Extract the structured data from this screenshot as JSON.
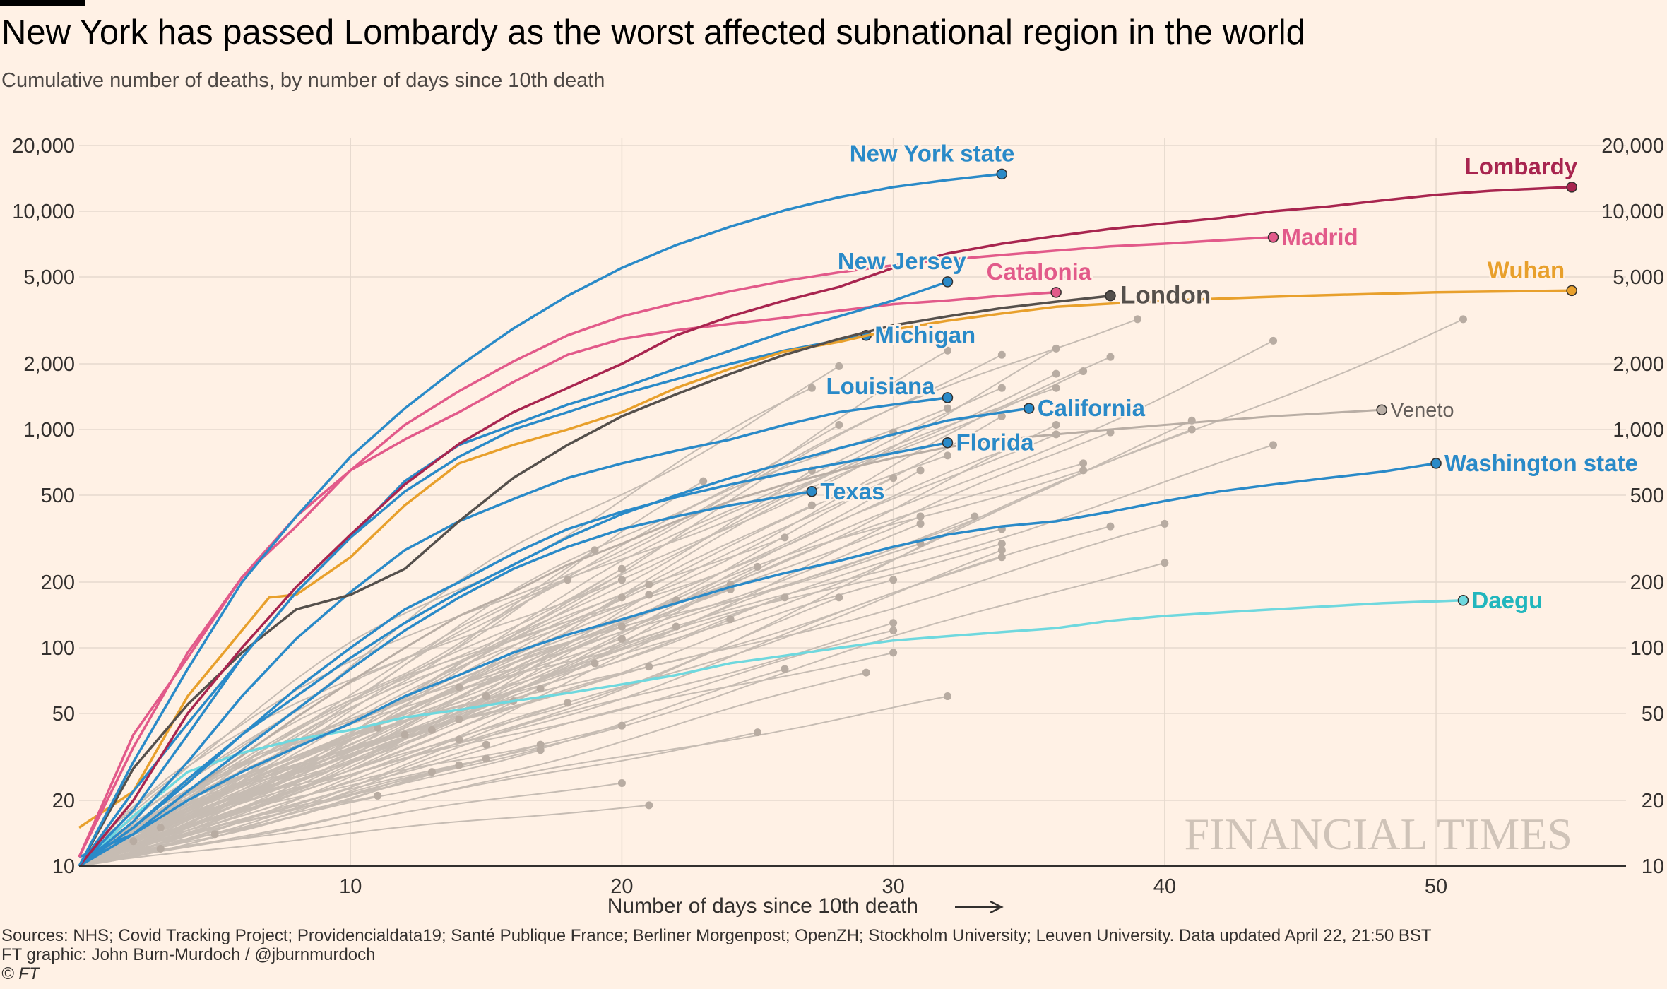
{
  "header": {
    "title": "New York has passed Lombardy as the worst affected subnational region in the world",
    "subtitle": "Cumulative number of deaths, by number of days since 10th death"
  },
  "footer": {
    "sources": "Sources: NHS; Covid Tracking Project; Providencialdata19; Santé Publique France; Berliner Morgenpost; OpenZH; Stockholm University; Leuven University. Data updated April 22, 21:50 BST",
    "credit": "FT graphic: John Burn-Murdoch / @jburnmurdoch",
    "copyright": "© FT"
  },
  "watermark": "FINANCIAL TIMES",
  "colors": {
    "background": "#fff1e5",
    "grid": "#e6d9ce",
    "blue": "#2a8ac8",
    "claret": "#a8254f",
    "pink": "#e25a8a",
    "orange": "#e8a02c",
    "dark": "#55504c",
    "teal": "#6fd8de",
    "grey": "#c6bcb3",
    "watermark": "#cfc3b8"
  },
  "chart_data": {
    "type": "line",
    "title": "New York has passed Lombardy as the worst affected subnational region in the world",
    "subtitle": "Cumulative number of deaths, by number of days since 10th death",
    "xlabel": "Number of days since 10th death",
    "ylabel": "",
    "yscale": "log",
    "xlim": [
      0,
      57
    ],
    "ylim": [
      10,
      20000
    ],
    "xticks": [
      10,
      20,
      30,
      40,
      50
    ],
    "yticks": [
      10,
      20,
      50,
      100,
      200,
      500,
      1000,
      2000,
      5000,
      10000,
      20000
    ],
    "ytick_labels": [
      "10",
      "20",
      "50",
      "100",
      "200",
      "500",
      "1,000",
      "2,000",
      "5,000",
      "10,000",
      "20,000"
    ],
    "grid": true,
    "legend": "direct labels at line ends",
    "highlighted_series": [
      {
        "name": "New York state",
        "color": "#2a8ac8",
        "label_color": "#2a8ac8",
        "x": [
          0,
          2,
          4,
          6,
          8,
          10,
          12,
          14,
          16,
          18,
          20,
          22,
          24,
          26,
          28,
          30,
          32,
          34
        ],
        "y": [
          10,
          30,
          80,
          200,
          400,
          750,
          1250,
          1950,
          2900,
          4100,
          5500,
          7000,
          8500,
          10100,
          11600,
          12900,
          13900,
          14800
        ]
      },
      {
        "name": "Lombardy",
        "color": "#a8254f",
        "label_color": "#a8254f",
        "x": [
          0,
          2,
          4,
          6,
          8,
          10,
          12,
          14,
          16,
          18,
          20,
          22,
          24,
          26,
          28,
          30,
          32,
          34,
          36,
          38,
          40,
          42,
          44,
          46,
          48,
          50,
          52,
          55
        ],
        "y": [
          10,
          20,
          50,
          100,
          190,
          330,
          560,
          860,
          1200,
          1550,
          2000,
          2700,
          3300,
          3900,
          4500,
          5500,
          6400,
          7100,
          7700,
          8300,
          8800,
          9300,
          10000,
          10500,
          11200,
          11900,
          12400,
          12900
        ]
      },
      {
        "name": "Madrid",
        "color": "#e25a8a",
        "label_color": "#e25a8a",
        "x": [
          0,
          2,
          4,
          6,
          8,
          10,
          12,
          14,
          16,
          18,
          20,
          22,
          24,
          26,
          28,
          30,
          32,
          34,
          36,
          38,
          40,
          42,
          44
        ],
        "y": [
          11,
          35,
          95,
          210,
          400,
          650,
          1050,
          1500,
          2050,
          2700,
          3300,
          3800,
          4300,
          4800,
          5250,
          5650,
          6000,
          6300,
          6600,
          6900,
          7100,
          7350,
          7600
        ]
      },
      {
        "name": "Catalonia",
        "color": "#e25a8a",
        "label_color": "#e25a8a",
        "x": [
          0,
          2,
          4,
          6,
          8,
          10,
          12,
          14,
          16,
          18,
          20,
          22,
          24,
          26,
          28,
          30,
          32,
          34,
          36
        ],
        "y": [
          11,
          40,
          90,
          210,
          360,
          650,
          900,
          1200,
          1650,
          2200,
          2600,
          2850,
          3050,
          3250,
          3500,
          3750,
          3900,
          4100,
          4250
        ]
      },
      {
        "name": "London",
        "color": "#55504c",
        "label_color": "#55504c",
        "x": [
          0,
          2,
          4,
          6,
          8,
          10,
          12,
          14,
          16,
          18,
          20,
          22,
          24,
          26,
          28,
          30,
          32,
          34,
          36,
          38
        ],
        "y": [
          10,
          28,
          55,
          95,
          150,
          175,
          230,
          380,
          600,
          850,
          1150,
          1450,
          1800,
          2200,
          2600,
          3000,
          3300,
          3600,
          3850,
          4100
        ]
      },
      {
        "name": "Wuhan",
        "color": "#e8a02c",
        "label_color": "#e8a02c",
        "x": [
          0,
          2,
          4,
          6,
          7,
          8,
          10,
          12,
          14,
          16,
          18,
          20,
          22,
          24,
          26,
          28,
          30,
          32,
          34,
          36,
          40,
          45,
          50,
          55
        ],
        "y": [
          15,
          22,
          60,
          120,
          170,
          175,
          260,
          450,
          700,
          850,
          1000,
          1200,
          1550,
          1900,
          2280,
          2520,
          2870,
          3150,
          3400,
          3650,
          3900,
          4100,
          4250,
          4330
        ]
      },
      {
        "name": "New Jersey",
        "color": "#2a8ac8",
        "label_color": "#2a8ac8",
        "x": [
          0,
          2,
          4,
          6,
          8,
          10,
          12,
          14,
          16,
          18,
          20,
          22,
          24,
          26,
          28,
          30,
          32
        ],
        "y": [
          10,
          22,
          45,
          90,
          180,
          320,
          580,
          850,
          1050,
          1300,
          1550,
          1900,
          2300,
          2800,
          3300,
          3900,
          4750
        ]
      },
      {
        "name": "Michigan",
        "color": "#2a8ac8",
        "label_color": "#2a8ac8",
        "x": [
          0,
          2,
          4,
          6,
          8,
          10,
          12,
          14,
          16,
          18,
          20,
          22,
          24,
          26,
          29
        ],
        "y": [
          10,
          18,
          40,
          90,
          180,
          320,
          520,
          750,
          1000,
          1200,
          1450,
          1700,
          2000,
          2300,
          2700
        ]
      },
      {
        "name": "Louisiana",
        "color": "#2a8ac8",
        "label_color": "#2a8ac8",
        "x": [
          0,
          2,
          4,
          6,
          8,
          10,
          12,
          14,
          16,
          18,
          20,
          22,
          24,
          26,
          28,
          30,
          32
        ],
        "y": [
          10,
          16,
          30,
          60,
          110,
          180,
          280,
          380,
          480,
          600,
          700,
          800,
          900,
          1050,
          1200,
          1300,
          1400
        ]
      },
      {
        "name": "California",
        "color": "#2a8ac8",
        "label_color": "#2a8ac8",
        "x": [
          0,
          2,
          4,
          6,
          8,
          10,
          12,
          14,
          16,
          18,
          20,
          22,
          24,
          26,
          28,
          30,
          32,
          35
        ],
        "y": [
          10,
          15,
          24,
          40,
          60,
          90,
          130,
          180,
          240,
          320,
          410,
          500,
          600,
          700,
          820,
          950,
          1100,
          1250
        ]
      },
      {
        "name": "Florida",
        "color": "#2a8ac8",
        "label_color": "#2a8ac8",
        "x": [
          0,
          2,
          4,
          6,
          8,
          10,
          12,
          14,
          16,
          18,
          20,
          22,
          24,
          26,
          28,
          30,
          32
        ],
        "y": [
          10,
          15,
          25,
          40,
          65,
          100,
          150,
          200,
          270,
          350,
          420,
          490,
          560,
          630,
          700,
          780,
          870
        ]
      },
      {
        "name": "Texas",
        "color": "#2a8ac8",
        "label_color": "#2a8ac8",
        "x": [
          0,
          2,
          4,
          6,
          8,
          10,
          12,
          14,
          16,
          18,
          20,
          22,
          24,
          27
        ],
        "y": [
          10,
          14,
          22,
          34,
          52,
          80,
          120,
          170,
          230,
          290,
          350,
          400,
          450,
          520
        ]
      },
      {
        "name": "Washington state",
        "color": "#2a8ac8",
        "label_color": "#2a8ac8",
        "x": [
          0,
          2,
          4,
          6,
          8,
          10,
          12,
          14,
          16,
          18,
          20,
          22,
          24,
          26,
          28,
          30,
          32,
          34,
          36,
          38,
          40,
          42,
          44,
          46,
          48,
          50
        ],
        "y": [
          11,
          14,
          20,
          27,
          35,
          45,
          60,
          75,
          95,
          115,
          135,
          160,
          190,
          220,
          250,
          290,
          330,
          360,
          380,
          420,
          470,
          520,
          560,
          600,
          640,
          700
        ]
      },
      {
        "name": "Veneto",
        "color": "#b9aea5",
        "label_color": "#66605c",
        "x": [
          0,
          2,
          4,
          6,
          8,
          10,
          12,
          14,
          16,
          18,
          20,
          22,
          24,
          26,
          28,
          30,
          32,
          34,
          36,
          38,
          40,
          42,
          44,
          46,
          48
        ],
        "y": [
          10,
          14,
          22,
          32,
          48,
          70,
          100,
          140,
          180,
          240,
          300,
          380,
          470,
          560,
          650,
          740,
          830,
          900,
          950,
          1000,
          1050,
          1100,
          1150,
          1190,
          1230
        ]
      },
      {
        "name": "Daegu",
        "color": "#6fd8de",
        "label_color": "#22b6bd",
        "x": [
          0,
          2,
          4,
          6,
          8,
          10,
          12,
          14,
          16,
          18,
          20,
          22,
          24,
          26,
          28,
          30,
          32,
          34,
          36,
          38,
          40,
          42,
          44,
          46,
          48,
          51
        ],
        "y": [
          10,
          17,
          27,
          33,
          38,
          42,
          48,
          52,
          57,
          62,
          68,
          75,
          85,
          92,
          100,
          108,
          113,
          118,
          123,
          133,
          140,
          145,
          150,
          155,
          160,
          165
        ]
      }
    ],
    "background_series": [
      {
        "end_x": 39,
        "end_y": 3200
      },
      {
        "end_x": 51,
        "end_y": 3200
      },
      {
        "end_x": 44,
        "end_y": 2550
      },
      {
        "end_x": 36,
        "end_y": 2350
      },
      {
        "end_x": 32,
        "end_y": 2300
      },
      {
        "end_x": 38,
        "end_y": 2150
      },
      {
        "end_x": 34,
        "end_y": 2200
      },
      {
        "end_x": 37,
        "end_y": 1850
      },
      {
        "end_x": 36,
        "end_y": 1800
      },
      {
        "end_x": 28,
        "end_y": 1950
      },
      {
        "end_x": 34,
        "end_y": 1550
      },
      {
        "end_x": 27,
        "end_y": 1550
      },
      {
        "end_x": 36,
        "end_y": 1550
      },
      {
        "end_x": 32,
        "end_y": 1250
      },
      {
        "end_x": 34,
        "end_y": 1150
      },
      {
        "end_x": 41,
        "end_y": 1100
      },
      {
        "end_x": 36,
        "end_y": 1050
      },
      {
        "end_x": 41,
        "end_y": 1000
      },
      {
        "end_x": 38,
        "end_y": 970
      },
      {
        "end_x": 36,
        "end_y": 950
      },
      {
        "end_x": 30,
        "end_y": 970
      },
      {
        "end_x": 28,
        "end_y": 1050
      },
      {
        "end_x": 44,
        "end_y": 850
      },
      {
        "end_x": 35,
        "end_y": 880
      },
      {
        "end_x": 32,
        "end_y": 760
      },
      {
        "end_x": 37,
        "end_y": 700
      },
      {
        "end_x": 37,
        "end_y": 650
      },
      {
        "end_x": 31,
        "end_y": 650
      },
      {
        "end_x": 27,
        "end_y": 650
      },
      {
        "end_x": 30,
        "end_y": 600
      },
      {
        "end_x": 23,
        "end_y": 580
      },
      {
        "end_x": 27,
        "end_y": 450
      },
      {
        "end_x": 31,
        "end_y": 400
      },
      {
        "end_x": 33,
        "end_y": 400
      },
      {
        "end_x": 31,
        "end_y": 370
      },
      {
        "end_x": 40,
        "end_y": 370
      },
      {
        "end_x": 38,
        "end_y": 360
      },
      {
        "end_x": 34,
        "end_y": 350
      },
      {
        "end_x": 26,
        "end_y": 320
      },
      {
        "end_x": 34,
        "end_y": 300
      },
      {
        "end_x": 31,
        "end_y": 300
      },
      {
        "end_x": 34,
        "end_y": 280
      },
      {
        "end_x": 19,
        "end_y": 280
      },
      {
        "end_x": 34,
        "end_y": 260
      },
      {
        "end_x": 40,
        "end_y": 245
      },
      {
        "end_x": 25,
        "end_y": 235
      },
      {
        "end_x": 20,
        "end_y": 230
      },
      {
        "end_x": 20,
        "end_y": 205
      },
      {
        "end_x": 18,
        "end_y": 205
      },
      {
        "end_x": 30,
        "end_y": 205
      },
      {
        "end_x": 21,
        "end_y": 195
      },
      {
        "end_x": 24,
        "end_y": 195
      },
      {
        "end_x": 24,
        "end_y": 185
      },
      {
        "end_x": 26,
        "end_y": 170
      },
      {
        "end_x": 28,
        "end_y": 170
      },
      {
        "end_x": 22,
        "end_y": 165
      },
      {
        "end_x": 20,
        "end_y": 170
      },
      {
        "end_x": 21,
        "end_y": 175
      },
      {
        "end_x": 24,
        "end_y": 135
      },
      {
        "end_x": 30,
        "end_y": 130
      },
      {
        "end_x": 20,
        "end_y": 125
      },
      {
        "end_x": 30,
        "end_y": 120
      },
      {
        "end_x": 22,
        "end_y": 125
      },
      {
        "end_x": 20,
        "end_y": 110
      },
      {
        "end_x": 30,
        "end_y": 95
      },
      {
        "end_x": 19,
        "end_y": 85
      },
      {
        "end_x": 21,
        "end_y": 82
      },
      {
        "end_x": 26,
        "end_y": 80
      },
      {
        "end_x": 29,
        "end_y": 77
      },
      {
        "end_x": 14,
        "end_y": 66
      },
      {
        "end_x": 17,
        "end_y": 65
      },
      {
        "end_x": 15,
        "end_y": 60
      },
      {
        "end_x": 32,
        "end_y": 60
      },
      {
        "end_x": 16,
        "end_y": 57
      },
      {
        "end_x": 18,
        "end_y": 56
      },
      {
        "end_x": 14,
        "end_y": 47
      },
      {
        "end_x": 13,
        "end_y": 42
      },
      {
        "end_x": 11,
        "end_y": 43
      },
      {
        "end_x": 20,
        "end_y": 44
      },
      {
        "end_x": 12,
        "end_y": 40
      },
      {
        "end_x": 14,
        "end_y": 38
      },
      {
        "end_x": 15,
        "end_y": 36
      },
      {
        "end_x": 17,
        "end_y": 36
      },
      {
        "end_x": 17,
        "end_y": 34
      },
      {
        "end_x": 25,
        "end_y": 41
      },
      {
        "end_x": 15,
        "end_y": 31
      },
      {
        "end_x": 14,
        "end_y": 29
      },
      {
        "end_x": 13,
        "end_y": 27
      },
      {
        "end_x": 11,
        "end_y": 21
      },
      {
        "end_x": 20,
        "end_y": 24
      },
      {
        "end_x": 21,
        "end_y": 19
      },
      {
        "end_x": 3,
        "end_y": 15
      },
      {
        "end_x": 5,
        "end_y": 14
      },
      {
        "end_x": 2,
        "end_y": 13
      },
      {
        "end_x": 3,
        "end_y": 12
      }
    ]
  }
}
